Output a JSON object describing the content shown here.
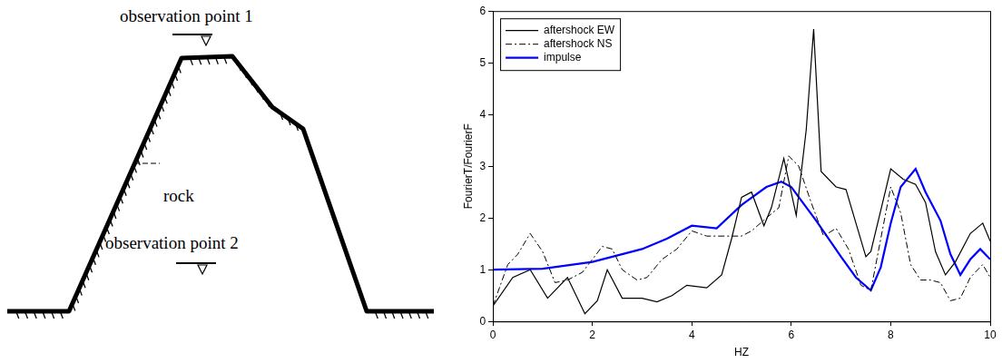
{
  "diagram": {
    "labels": [
      "observation point 1",
      "rock",
      "observation point 2"
    ]
  },
  "chart_data": {
    "type": "line",
    "x_label": "HZ",
    "y_label": "FourierT/FourierF",
    "xlim": [
      0,
      10
    ],
    "xticks": [
      0,
      2,
      4,
      6,
      8,
      10
    ],
    "ylim": [
      0,
      6
    ],
    "yticks": [
      0,
      1,
      2,
      3,
      4,
      5,
      6
    ],
    "grid": false,
    "legend": "upper left",
    "series": [
      {
        "name": "aftershock EW",
        "color": "#000000",
        "line_style": "solid",
        "x": [
          0,
          0.4,
          0.75,
          1.1,
          1.5,
          1.85,
          2.1,
          2.3,
          2.6,
          3.0,
          3.3,
          3.6,
          3.9,
          4.3,
          4.6,
          4.8,
          5.0,
          5.2,
          5.45,
          5.6,
          5.85,
          6.1,
          6.3,
          6.45,
          6.6,
          6.9,
          7.1,
          7.3,
          7.5,
          7.6,
          8.0,
          8.25,
          8.5,
          8.7,
          8.9,
          9.1,
          9.3,
          9.6,
          9.85,
          10.0
        ],
        "values": [
          0.3,
          0.85,
          1.0,
          0.45,
          0.85,
          0.15,
          0.4,
          1.0,
          0.45,
          0.45,
          0.38,
          0.5,
          0.7,
          0.65,
          0.9,
          1.6,
          2.4,
          2.5,
          1.85,
          2.2,
          3.15,
          2.05,
          3.7,
          5.65,
          2.9,
          2.6,
          2.55,
          1.9,
          1.25,
          1.35,
          2.95,
          2.75,
          2.65,
          2.3,
          1.35,
          0.9,
          1.15,
          1.7,
          1.9,
          1.55
        ]
      },
      {
        "name": "aftershock NS",
        "color": "#000000",
        "line_style": "dashdot",
        "x": [
          0,
          0.3,
          0.5,
          0.75,
          1.0,
          1.25,
          1.5,
          1.8,
          2.2,
          2.4,
          2.6,
          2.9,
          3.1,
          3.4,
          3.7,
          4.0,
          4.3,
          4.7,
          5.0,
          5.2,
          5.5,
          5.75,
          5.95,
          6.15,
          6.4,
          6.65,
          6.9,
          7.15,
          7.4,
          7.6,
          7.8,
          8.0,
          8.2,
          8.4,
          8.6,
          8.8,
          9.0,
          9.2,
          9.4,
          9.6,
          9.85,
          10.0
        ],
        "values": [
          0.3,
          1.1,
          1.3,
          1.7,
          1.35,
          0.75,
          0.8,
          0.95,
          1.45,
          1.4,
          1.0,
          0.8,
          0.85,
          1.2,
          1.4,
          1.75,
          1.65,
          1.65,
          1.65,
          1.75,
          2.0,
          2.2,
          3.2,
          3.0,
          2.3,
          1.65,
          1.8,
          1.4,
          0.7,
          0.6,
          1.6,
          2.6,
          2.1,
          1.1,
          0.8,
          0.8,
          0.75,
          0.4,
          0.45,
          0.85,
          1.1,
          0.85
        ]
      },
      {
        "name": "impulse",
        "color": "#0000ff",
        "line_style": "solid",
        "x": [
          0,
          1,
          2,
          3,
          3.5,
          4,
          4.5,
          5,
          5.5,
          5.8,
          6,
          6.5,
          7,
          7.3,
          7.6,
          7.8,
          8,
          8.2,
          8.5,
          8.7,
          9,
          9.2,
          9.4,
          9.6,
          9.8,
          10
        ],
        "values": [
          1.0,
          1.02,
          1.15,
          1.4,
          1.6,
          1.85,
          1.8,
          2.25,
          2.6,
          2.7,
          2.6,
          1.95,
          1.25,
          0.85,
          0.6,
          1.05,
          1.9,
          2.6,
          2.95,
          2.5,
          1.95,
          1.3,
          0.9,
          1.2,
          1.4,
          1.2
        ]
      }
    ]
  }
}
